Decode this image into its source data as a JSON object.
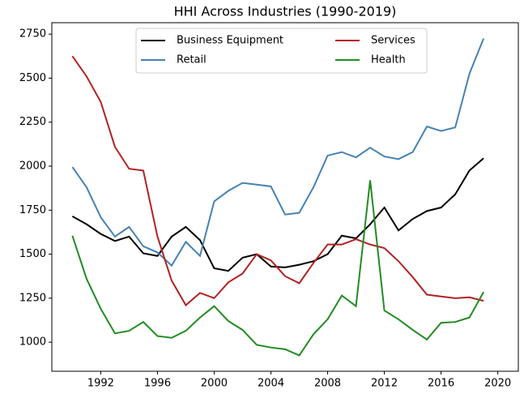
{
  "chart_data": {
    "type": "line",
    "title": "HHI Across Industries (1990-2019)",
    "x": [
      1990,
      1991,
      1992,
      1993,
      1994,
      1995,
      1996,
      1997,
      1998,
      1999,
      2000,
      2001,
      2002,
      2003,
      2004,
      2005,
      2006,
      2007,
      2008,
      2009,
      2010,
      2011,
      2012,
      2013,
      2014,
      2015,
      2016,
      2017,
      2018,
      2019
    ],
    "series": [
      {
        "name": "Business Equipment",
        "color": "#000000",
        "values": [
          1715,
          1670,
          1615,
          1575,
          1600,
          1505,
          1490,
          1600,
          1655,
          1580,
          1420,
          1405,
          1480,
          1500,
          1430,
          1425,
          1440,
          1460,
          1500,
          1605,
          1590,
          1670,
          1765,
          1635,
          1700,
          1745,
          1765,
          1840,
          1975,
          2045
        ]
      },
      {
        "name": "Retail",
        "color": "#4682b4",
        "values": [
          1995,
          1880,
          1710,
          1600,
          1655,
          1545,
          1510,
          1435,
          1570,
          1490,
          1800,
          1860,
          1905,
          1895,
          1885,
          1725,
          1735,
          1880,
          2060,
          2080,
          2050,
          2105,
          2055,
          2040,
          2080,
          2225,
          2200,
          2220,
          2525,
          2725
        ]
      },
      {
        "name": "Services",
        "color": "#b22222",
        "values": [
          2625,
          2510,
          2365,
          2110,
          1985,
          1975,
          1600,
          1350,
          1210,
          1280,
          1250,
          1340,
          1390,
          1500,
          1465,
          1375,
          1335,
          1450,
          1555,
          1555,
          1585,
          1555,
          1535,
          1460,
          1370,
          1270,
          1260,
          1250,
          1255,
          1235
        ]
      },
      {
        "name": "Health",
        "color": "#228b22",
        "values": [
          1605,
          1360,
          1190,
          1050,
          1065,
          1115,
          1035,
          1025,
          1065,
          1140,
          1205,
          1120,
          1070,
          985,
          970,
          960,
          925,
          1045,
          1130,
          1265,
          1205,
          1920,
          1180,
          1130,
          1070,
          1015,
          1110,
          1115,
          1140,
          1285
        ]
      }
    ],
    "xlim": [
      1988.55,
      2021.45
    ],
    "xticks": [
      1992,
      1996,
      2000,
      2004,
      2008,
      2012,
      2016,
      2020
    ],
    "ylim": [
      835,
      2815
    ],
    "yticks": [
      1000,
      1250,
      1500,
      1750,
      2000,
      2250,
      2500,
      2750
    ],
    "legend": "upper center"
  }
}
